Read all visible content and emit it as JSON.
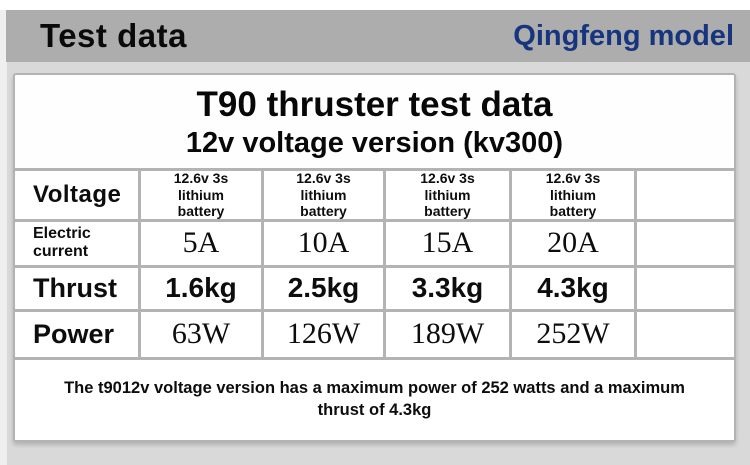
{
  "header": {
    "title": "Test data",
    "brand": "Qingfeng model"
  },
  "colors": {
    "brand_blue": "#16357e",
    "band_gray": "#adadad",
    "page_gray": "#d9d9d9",
    "card_border_gray": "#b3b3b3",
    "text_black": "#0d0d0d"
  },
  "card": {
    "title": "T90 thruster test data",
    "subtitle": "12v voltage version (kv300)",
    "note": "The t9012v voltage version has a maximum power of 252 watts and a maximum thrust of 4.3kg"
  },
  "table": {
    "labels": {
      "voltage": "Voltage",
      "current": "Electric\ncurrent",
      "thrust": "Thrust",
      "power": "Power"
    },
    "battery_header": "12.6v 3s\nlithium\nbattery",
    "current": [
      "5A",
      "10A",
      "15A",
      "20A"
    ],
    "thrust": [
      "1.6kg",
      "2.5kg",
      "3.3kg",
      "4.3kg"
    ],
    "power": [
      "63W",
      "126W",
      "189W",
      "252W"
    ]
  },
  "chart_data": {
    "type": "table",
    "title": "T90 thruster test data",
    "subtitle": "12v voltage version (kv300)",
    "columns": [
      "12.6v 3s lithium battery",
      "12.6v 3s lithium battery",
      "12.6v 3s lithium battery",
      "12.6v 3s lithium battery"
    ],
    "rows": [
      {
        "label": "Electric current",
        "values": [
          "5A",
          "10A",
          "15A",
          "20A"
        ]
      },
      {
        "label": "Thrust",
        "values": [
          "1.6kg",
          "2.5kg",
          "3.3kg",
          "4.3kg"
        ]
      },
      {
        "label": "Power",
        "values": [
          "63W",
          "126W",
          "189W",
          "252W"
        ]
      }
    ],
    "note": "The t9012v voltage version has a maximum power of 252 watts and a maximum thrust of 4.3kg"
  }
}
